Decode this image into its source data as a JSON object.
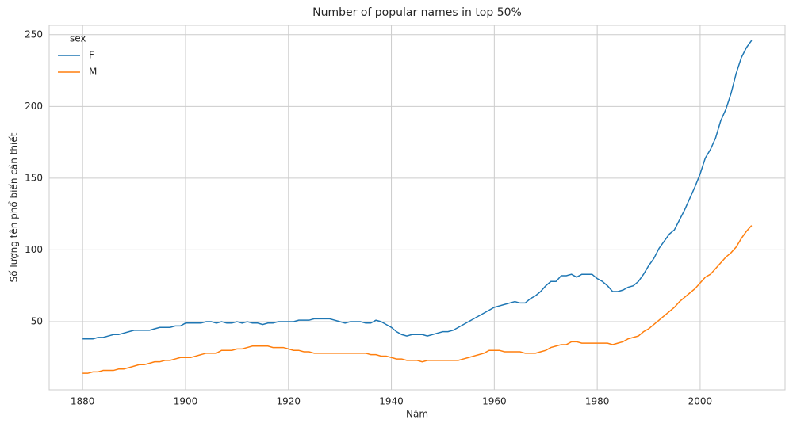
{
  "chart_data": {
    "type": "line",
    "title": "Number of popular names in top 50%",
    "xlabel": "Năm",
    "ylabel": "Số lượng tên phổ biến cần thiết",
    "x": [
      1880,
      1881,
      1882,
      1883,
      1884,
      1885,
      1886,
      1887,
      1888,
      1889,
      1890,
      1891,
      1892,
      1893,
      1894,
      1895,
      1896,
      1897,
      1898,
      1899,
      1900,
      1901,
      1902,
      1903,
      1904,
      1905,
      1906,
      1907,
      1908,
      1909,
      1910,
      1911,
      1912,
      1913,
      1914,
      1915,
      1916,
      1917,
      1918,
      1919,
      1920,
      1921,
      1922,
      1923,
      1924,
      1925,
      1926,
      1927,
      1928,
      1929,
      1930,
      1931,
      1932,
      1933,
      1934,
      1935,
      1936,
      1937,
      1938,
      1939,
      1940,
      1941,
      1942,
      1943,
      1944,
      1945,
      1946,
      1947,
      1948,
      1949,
      1950,
      1951,
      1952,
      1953,
      1954,
      1955,
      1956,
      1957,
      1958,
      1959,
      1960,
      1961,
      1962,
      1963,
      1964,
      1965,
      1966,
      1967,
      1968,
      1969,
      1970,
      1971,
      1972,
      1973,
      1974,
      1975,
      1976,
      1977,
      1978,
      1979,
      1980,
      1981,
      1982,
      1983,
      1984,
      1985,
      1986,
      1987,
      1988,
      1989,
      1990,
      1991,
      1992,
      1993,
      1994,
      1995,
      1996,
      1997,
      1998,
      1999,
      2000,
      2001,
      2002,
      2003,
      2004,
      2005,
      2006,
      2007,
      2008,
      2009,
      2010
    ],
    "series": [
      {
        "name": "F",
        "color": "#1f77b4",
        "values": [
          38,
          38,
          38,
          39,
          39,
          40,
          41,
          41,
          42,
          43,
          44,
          44,
          44,
          44,
          45,
          46,
          46,
          46,
          47,
          47,
          49,
          49,
          49,
          49,
          50,
          50,
          49,
          50,
          49,
          49,
          50,
          49,
          50,
          49,
          49,
          48,
          49,
          49,
          50,
          50,
          50,
          50,
          51,
          51,
          51,
          52,
          52,
          52,
          52,
          51,
          50,
          49,
          50,
          50,
          50,
          49,
          49,
          51,
          50,
          48,
          46,
          43,
          41,
          40,
          41,
          41,
          41,
          40,
          41,
          42,
          43,
          43,
          44,
          46,
          48,
          50,
          52,
          54,
          56,
          58,
          60,
          61,
          62,
          63,
          64,
          63,
          63,
          66,
          68,
          71,
          75,
          78,
          78,
          82,
          82,
          83,
          81,
          83,
          83,
          83,
          80,
          78,
          75,
          71,
          71,
          72,
          74,
          75,
          78,
          83,
          89,
          94,
          101,
          106,
          111,
          114,
          121,
          128,
          136,
          144,
          153,
          164,
          170,
          178,
          190,
          198,
          209,
          223,
          234,
          241,
          246
        ]
      },
      {
        "name": "M",
        "color": "#ff7f0e",
        "values": [
          14,
          14,
          15,
          15,
          16,
          16,
          16,
          17,
          17,
          18,
          19,
          20,
          20,
          21,
          22,
          22,
          23,
          23,
          24,
          25,
          25,
          25,
          26,
          27,
          28,
          28,
          28,
          30,
          30,
          30,
          31,
          31,
          32,
          33,
          33,
          33,
          33,
          32,
          32,
          32,
          31,
          30,
          30,
          29,
          29,
          28,
          28,
          28,
          28,
          28,
          28,
          28,
          28,
          28,
          28,
          28,
          27,
          27,
          26,
          26,
          25,
          24,
          24,
          23,
          23,
          23,
          22,
          23,
          23,
          23,
          23,
          23,
          23,
          23,
          24,
          25,
          26,
          27,
          28,
          30,
          30,
          30,
          29,
          29,
          29,
          29,
          28,
          28,
          28,
          29,
          30,
          32,
          33,
          34,
          34,
          36,
          36,
          35,
          35,
          35,
          35,
          35,
          35,
          34,
          35,
          36,
          38,
          39,
          40,
          43,
          45,
          48,
          51,
          54,
          57,
          60,
          64,
          67,
          70,
          73,
          77,
          81,
          83,
          87,
          91,
          95,
          98,
          102,
          108,
          113,
          117
        ]
      }
    ],
    "legend_title": "sex",
    "legend": "upper left",
    "xlim": [
      1873.5,
      2016.5
    ],
    "xticks": [
      1880,
      1900,
      1920,
      1940,
      1960,
      1980,
      2000
    ],
    "ylim": [
      2.5,
      256.5
    ],
    "yticks": [
      50,
      100,
      150,
      200,
      250
    ],
    "grid": true
  }
}
